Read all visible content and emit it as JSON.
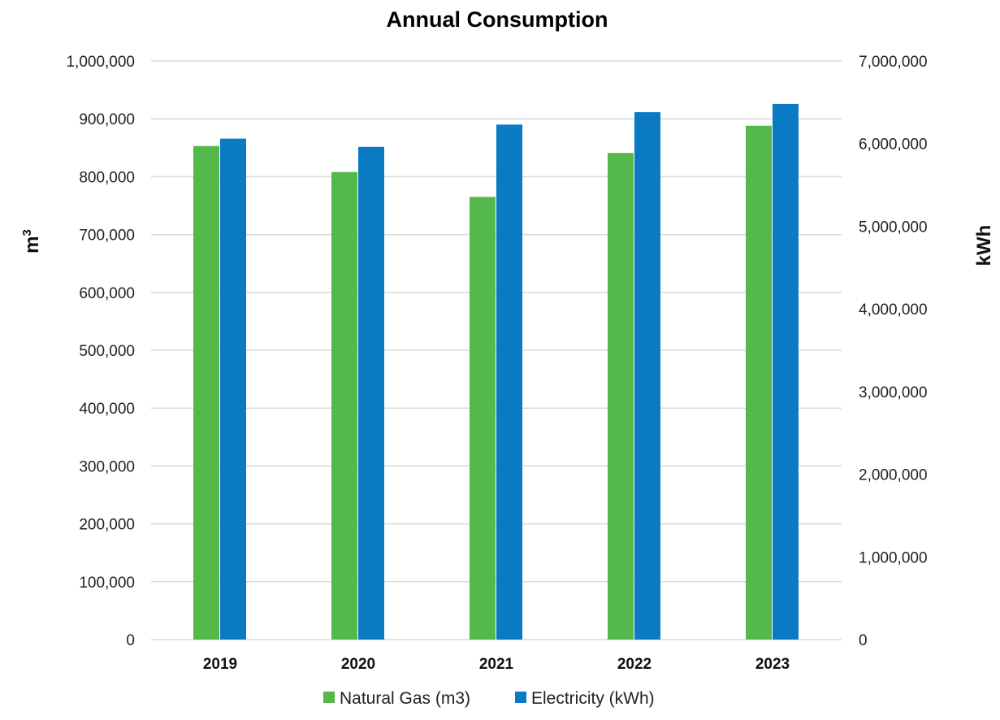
{
  "chart_data": {
    "type": "bar",
    "title": "Annual Consumption",
    "categories": [
      "2019",
      "2020",
      "2021",
      "2022",
      "2023"
    ],
    "series": [
      {
        "name": "Natural Gas (m3)",
        "axis": "left",
        "color": "#55b84a",
        "values": [
          853000,
          808000,
          765000,
          841000,
          888000
        ]
      },
      {
        "name": "Electricity (kWh)",
        "axis": "right",
        "color": "#0a7bc2",
        "values": [
          6060000,
          5960000,
          6230000,
          6380000,
          6480000
        ]
      }
    ],
    "y_left": {
      "label_base": "m",
      "label_sup": "3",
      "lim": [
        0,
        1000000
      ],
      "ticks": [
        "0",
        "100,000",
        "200,000",
        "300,000",
        "400,000",
        "500,000",
        "600,000",
        "700,000",
        "800,000",
        "900,000",
        "1,000,000"
      ]
    },
    "y_right": {
      "label": "kWh",
      "lim": [
        0,
        7000000
      ],
      "ticks": [
        "0",
        "1,000,000",
        "2,000,000",
        "3,000,000",
        "4,000,000",
        "5,000,000",
        "6,000,000",
        "7,000,000"
      ]
    },
    "grid": true,
    "legend": {
      "position": "bottom",
      "items": [
        "Natural Gas (m3)",
        "Electricity (kWh)"
      ]
    }
  }
}
